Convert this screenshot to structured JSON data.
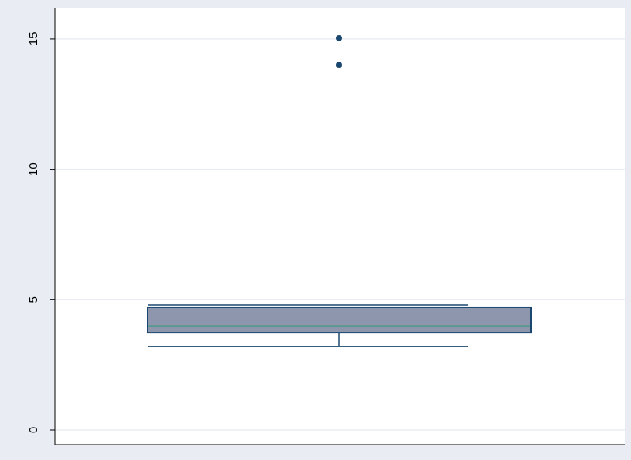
{
  "chart_data": {
    "type": "box",
    "ylim": [
      -0.56,
      16.18
    ],
    "yticks": [
      0,
      5,
      10,
      15
    ],
    "grid": true,
    "box": {
      "whisker_low": 3.2,
      "q1": 3.73,
      "median": 3.98,
      "q3": 4.7,
      "whisker_high": 4.79,
      "outliers": [
        14,
        15.03
      ],
      "fill": "#8d96ac",
      "stroke": "#1a476f",
      "median_color": "#4e9a8a"
    }
  }
}
